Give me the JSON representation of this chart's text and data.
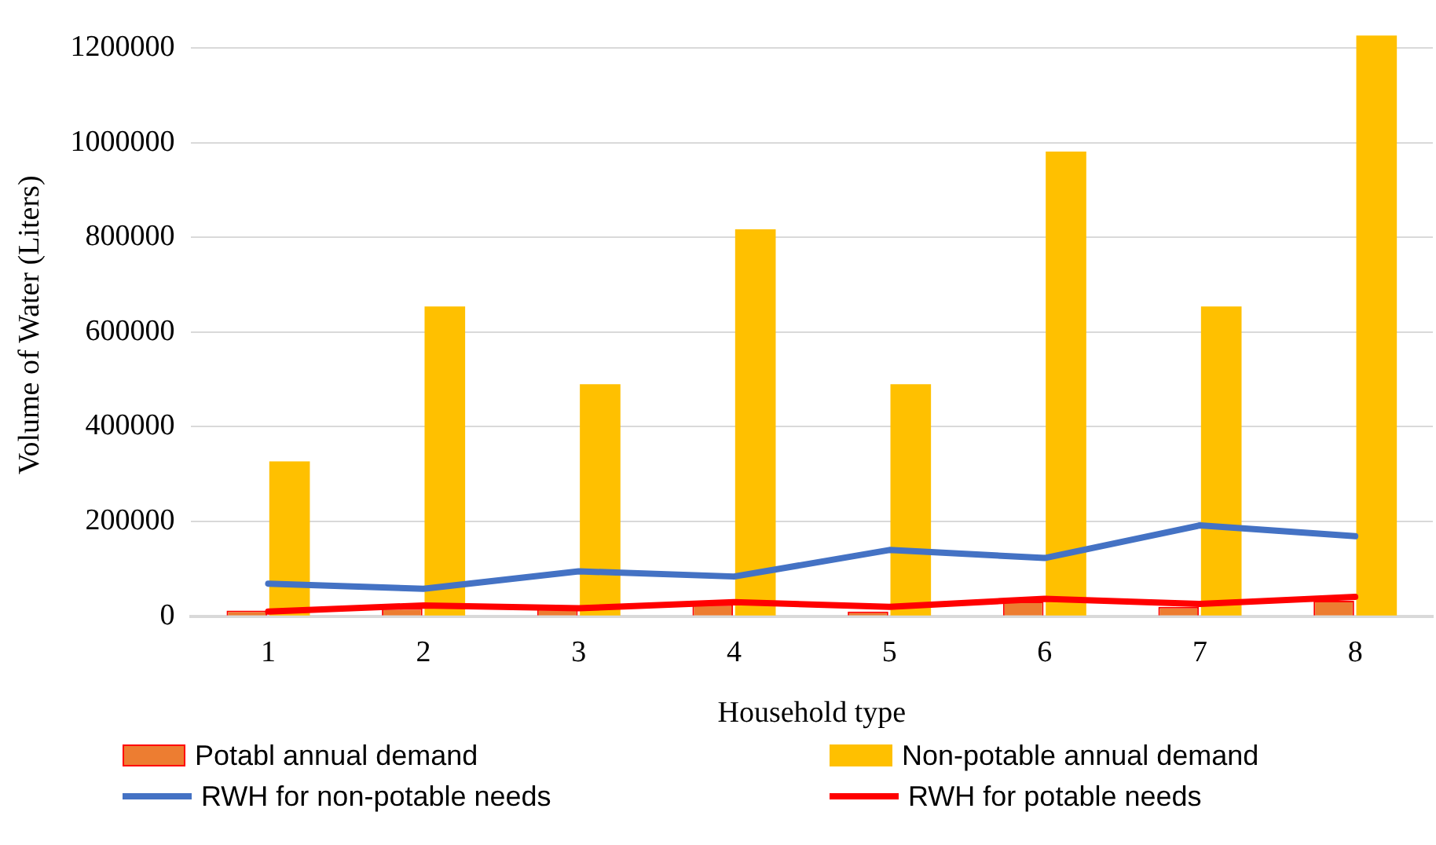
{
  "chart_data": {
    "type": "bar",
    "xlabel": "Household type",
    "ylabel": "Volume of Water (Liters)",
    "categories": [
      "1",
      "2",
      "3",
      "4",
      "5",
      "6",
      "7",
      "8"
    ],
    "series": [
      {
        "name": "Potabl annual demand",
        "color": "#ed7d31",
        "values": [
          12000,
          17000,
          16000,
          25000,
          10000,
          31000,
          20000,
          33000
        ]
      },
      {
        "name": "Non-potable annual demand",
        "color": "#ffc000",
        "values": [
          327000,
          654000,
          490000,
          817000,
          490000,
          981000,
          654000,
          1226000
        ]
      },
      {
        "name": "RWH for non-potable needs",
        "type": "line",
        "color": "#4472c4",
        "values": [
          69000,
          58000,
          95000,
          84000,
          140000,
          123000,
          192000,
          169000
        ]
      },
      {
        "name": "RWH for potable needs",
        "type": "line",
        "color": "#ff0000",
        "values": [
          10000,
          23000,
          17000,
          30000,
          20000,
          37000,
          26000,
          41000
        ]
      }
    ],
    "ylim": [
      0,
      1230000
    ],
    "yticks": [
      0,
      200000,
      400000,
      600000,
      800000,
      1000000,
      1200000
    ],
    "grid": "y",
    "legend": "bottom",
    "marker": "none"
  }
}
